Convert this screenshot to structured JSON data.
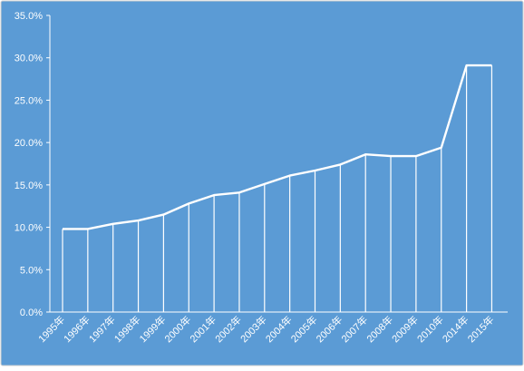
{
  "chart_data": {
    "type": "area",
    "categories": [
      "1995年",
      "1996年",
      "1997年",
      "1998年",
      "1999年",
      "2000年",
      "2001年",
      "2002年",
      "2003年",
      "2004年",
      "2005年",
      "2006年",
      "2007年",
      "2008年",
      "2009年",
      "2010年",
      "2014年",
      "2015年"
    ],
    "values": [
      9.8,
      9.8,
      10.4,
      10.8,
      11.5,
      12.8,
      13.8,
      14.1,
      15.1,
      16.1,
      16.7,
      17.4,
      18.6,
      18.4,
      18.4,
      19.4,
      29.1,
      29.1
    ],
    "ylim": [
      0,
      35
    ],
    "yticks": [
      "0.0%",
      "5.0%",
      "10.0%",
      "15.0%",
      "20.0%",
      "25.0%",
      "30.0%",
      "35.0%"
    ],
    "grid": false,
    "legend": "none",
    "title": "",
    "xlabel": "",
    "ylabel": "",
    "colors": {
      "plot_background": "#5b9bd5",
      "outer_background": "#ffffff",
      "frame_border": "#d0d0d0",
      "line": "#ffffff",
      "text": "#ffffff"
    }
  }
}
